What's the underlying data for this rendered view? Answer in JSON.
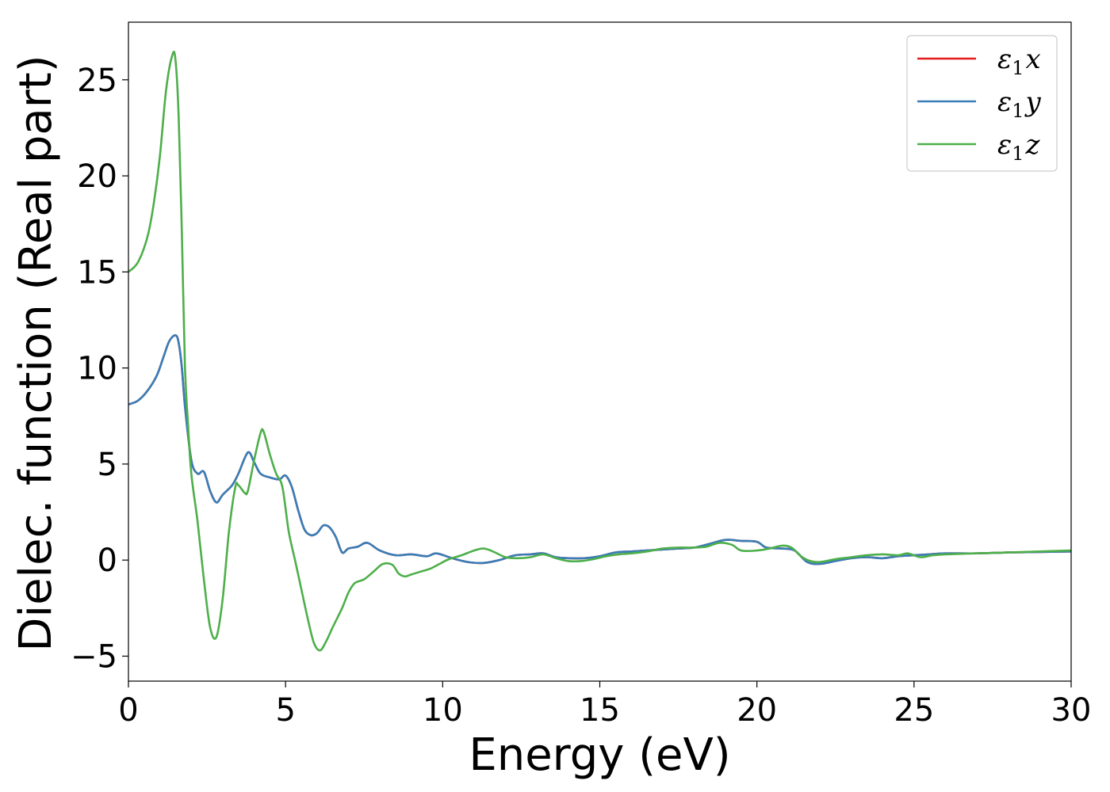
{
  "chart_data": {
    "type": "line",
    "xlabel": "Energy (eV)",
    "ylabel": "Dielec. function (Real part)",
    "xlim": [
      0,
      30
    ],
    "ylim": [
      -6.3,
      28
    ],
    "xticks": [
      0,
      5,
      10,
      15,
      20,
      25,
      30
    ],
    "yticks": [
      -5,
      0,
      5,
      10,
      15,
      20,
      25
    ],
    "xtick_labels": [
      "0",
      "5",
      "10",
      "15",
      "20",
      "25",
      "30"
    ],
    "ytick_labels": [
      "−5",
      "0",
      "5",
      "10",
      "15",
      "20",
      "25"
    ],
    "grid": false,
    "legend_position": "top-right",
    "series": [
      {
        "name": "ε1x",
        "legend_main": "ε",
        "legend_sub": "1",
        "legend_suffix": "x",
        "color": "#e41a1c",
        "x": [
          0,
          0.3,
          0.6,
          0.9,
          1.1,
          1.3,
          1.5,
          1.6,
          1.7,
          1.8,
          2.0,
          2.2,
          2.4,
          2.6,
          2.8,
          3.0,
          3.3,
          3.5,
          3.8,
          4.0,
          4.2,
          4.5,
          4.8,
          5.0,
          5.2,
          5.4,
          5.6,
          5.8,
          6.0,
          6.2,
          6.4,
          6.6,
          6.8,
          7.0,
          7.3,
          7.6,
          8.0,
          8.5,
          9.0,
          9.5,
          9.8,
          10.3,
          10.8,
          11.3,
          11.8,
          12.3,
          12.8,
          13.2,
          13.6,
          14.0,
          14.5,
          15.0,
          15.5,
          16.0,
          16.5,
          17.0,
          17.5,
          18.0,
          18.5,
          19.0,
          19.5,
          20.0,
          20.3,
          20.8,
          21.2,
          21.6,
          22.0,
          22.5,
          23.0,
          23.5,
          24.0,
          24.5,
          25.0,
          25.5,
          26.0,
          27.0,
          28.0,
          29.0,
          30.0
        ],
        "values": [
          8.1,
          8.3,
          8.8,
          9.6,
          10.5,
          11.4,
          11.7,
          11.3,
          10.0,
          8.0,
          5.2,
          4.5,
          4.6,
          3.6,
          3.0,
          3.4,
          3.9,
          4.5,
          5.6,
          5.1,
          4.5,
          4.3,
          4.2,
          4.4,
          3.8,
          2.6,
          1.6,
          1.3,
          1.4,
          1.8,
          1.7,
          1.2,
          0.4,
          0.6,
          0.7,
          0.9,
          0.5,
          0.25,
          0.3,
          0.2,
          0.35,
          0.1,
          -0.1,
          -0.15,
          0.0,
          0.25,
          0.3,
          0.35,
          0.15,
          0.1,
          0.1,
          0.2,
          0.4,
          0.45,
          0.5,
          0.55,
          0.6,
          0.65,
          0.85,
          1.05,
          1.0,
          0.95,
          0.65,
          0.6,
          0.5,
          -0.1,
          -0.2,
          -0.05,
          0.1,
          0.15,
          0.1,
          0.2,
          0.25,
          0.3,
          0.35,
          0.35,
          0.4,
          0.42,
          0.45
        ]
      },
      {
        "name": "ε1y",
        "legend_main": "ε",
        "legend_sub": "1",
        "legend_suffix": "y",
        "color": "#377eb8",
        "x": [
          0,
          0.3,
          0.6,
          0.9,
          1.1,
          1.3,
          1.5,
          1.6,
          1.7,
          1.8,
          2.0,
          2.2,
          2.4,
          2.6,
          2.8,
          3.0,
          3.3,
          3.5,
          3.8,
          4.0,
          4.2,
          4.5,
          4.8,
          5.0,
          5.2,
          5.4,
          5.6,
          5.8,
          6.0,
          6.2,
          6.4,
          6.6,
          6.8,
          7.0,
          7.3,
          7.6,
          8.0,
          8.5,
          9.0,
          9.5,
          9.8,
          10.3,
          10.8,
          11.3,
          11.8,
          12.3,
          12.8,
          13.2,
          13.6,
          14.0,
          14.5,
          15.0,
          15.5,
          16.0,
          16.5,
          17.0,
          17.5,
          18.0,
          18.5,
          19.0,
          19.5,
          20.0,
          20.3,
          20.8,
          21.2,
          21.6,
          22.0,
          22.5,
          23.0,
          23.5,
          24.0,
          24.5,
          25.0,
          25.5,
          26.0,
          27.0,
          28.0,
          29.0,
          30.0
        ],
        "values": [
          8.1,
          8.3,
          8.8,
          9.6,
          10.5,
          11.4,
          11.7,
          11.3,
          10.0,
          8.0,
          5.2,
          4.5,
          4.6,
          3.6,
          3.0,
          3.4,
          3.9,
          4.5,
          5.6,
          5.1,
          4.5,
          4.3,
          4.2,
          4.4,
          3.8,
          2.6,
          1.6,
          1.3,
          1.4,
          1.8,
          1.7,
          1.2,
          0.4,
          0.6,
          0.7,
          0.9,
          0.5,
          0.25,
          0.3,
          0.2,
          0.35,
          0.1,
          -0.1,
          -0.15,
          0.0,
          0.25,
          0.3,
          0.35,
          0.15,
          0.1,
          0.1,
          0.2,
          0.4,
          0.45,
          0.5,
          0.55,
          0.6,
          0.65,
          0.85,
          1.05,
          1.0,
          0.95,
          0.65,
          0.6,
          0.5,
          -0.1,
          -0.2,
          -0.05,
          0.1,
          0.15,
          0.1,
          0.2,
          0.25,
          0.3,
          0.35,
          0.35,
          0.4,
          0.42,
          0.45
        ]
      },
      {
        "name": "ε1z",
        "legend_main": "ε",
        "legend_sub": "1",
        "legend_suffix": "z",
        "color": "#4daf4a",
        "x": [
          0,
          0.3,
          0.6,
          0.8,
          1.0,
          1.2,
          1.4,
          1.5,
          1.6,
          1.7,
          1.8,
          1.9,
          2.0,
          2.2,
          2.4,
          2.6,
          2.8,
          3.0,
          3.2,
          3.4,
          3.5,
          3.7,
          3.8,
          4.0,
          4.2,
          4.3,
          4.5,
          4.7,
          4.9,
          5.1,
          5.3,
          5.5,
          5.7,
          5.9,
          6.1,
          6.3,
          6.5,
          6.8,
          7.0,
          7.2,
          7.5,
          7.8,
          8.1,
          8.4,
          8.6,
          8.8,
          9.0,
          9.3,
          9.6,
          9.9,
          10.2,
          10.6,
          11.0,
          11.3,
          11.6,
          12.0,
          12.4,
          12.8,
          13.2,
          13.6,
          14.0,
          14.4,
          14.8,
          15.2,
          15.6,
          16.0,
          16.5,
          17.0,
          17.5,
          18.0,
          18.4,
          18.8,
          19.2,
          19.5,
          20.0,
          20.4,
          20.8,
          21.1,
          21.4,
          21.7,
          22.0,
          22.5,
          23.0,
          23.5,
          24.0,
          24.5,
          24.8,
          25.2,
          25.6,
          26.0,
          27.0,
          28.0,
          29.0,
          30.0
        ],
        "values": [
          15.0,
          15.5,
          16.8,
          18.5,
          21.0,
          24.5,
          26.3,
          26.0,
          23.0,
          17.0,
          10.0,
          7.0,
          4.5,
          2.0,
          -1.0,
          -3.5,
          -4.0,
          -2.0,
          1.5,
          3.8,
          3.9,
          3.5,
          3.6,
          5.2,
          6.6,
          6.7,
          5.5,
          4.5,
          3.8,
          1.5,
          0.0,
          -1.5,
          -3.0,
          -4.3,
          -4.7,
          -4.2,
          -3.5,
          -2.5,
          -1.7,
          -1.2,
          -1.0,
          -0.6,
          -0.2,
          -0.25,
          -0.7,
          -0.85,
          -0.75,
          -0.6,
          -0.45,
          -0.2,
          0.05,
          0.25,
          0.5,
          0.6,
          0.45,
          0.15,
          0.1,
          0.15,
          0.3,
          0.1,
          -0.05,
          -0.05,
          0.05,
          0.2,
          0.3,
          0.35,
          0.45,
          0.6,
          0.65,
          0.65,
          0.7,
          0.9,
          0.8,
          0.5,
          0.5,
          0.6,
          0.75,
          0.65,
          0.2,
          -0.05,
          -0.1,
          0.05,
          0.15,
          0.25,
          0.3,
          0.25,
          0.35,
          0.15,
          0.25,
          0.3,
          0.35,
          0.4,
          0.45,
          0.5
        ]
      }
    ]
  }
}
